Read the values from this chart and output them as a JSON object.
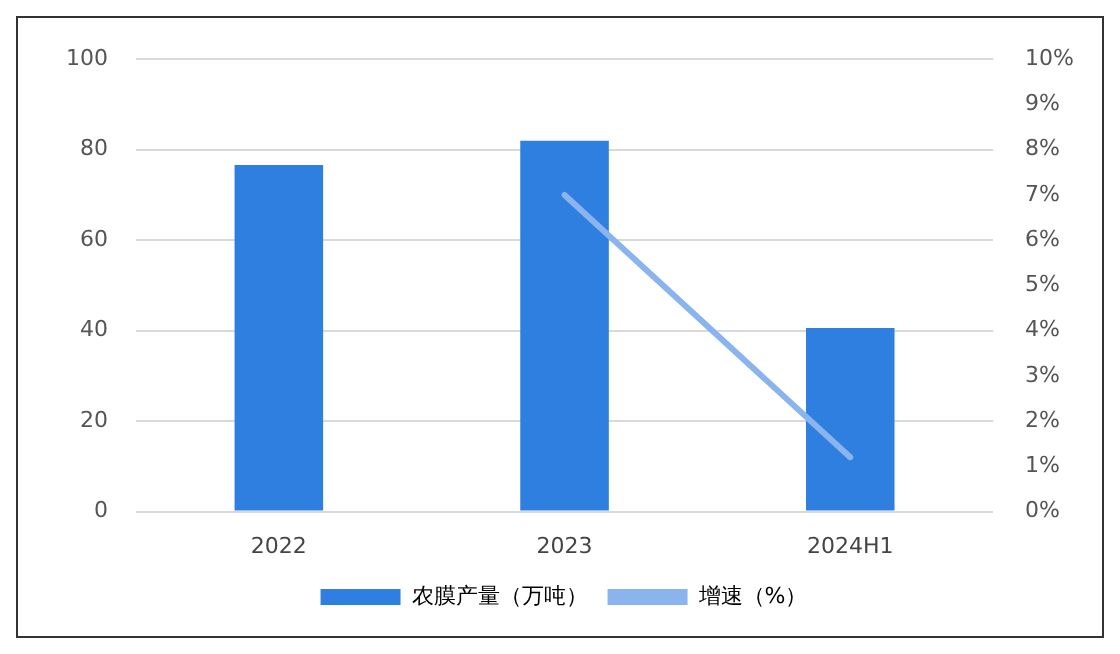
{
  "chart_data": {
    "type": "bar",
    "categories": [
      "2022",
      "2023",
      "2024H1"
    ],
    "series": [
      {
        "name": "农膜产量（万吨）",
        "color": "#2f7fe0",
        "values": [
          76.6,
          82.0,
          40.6
        ]
      },
      {
        "name": "增速（%）",
        "type": "line",
        "axis": "y2",
        "color": "#8ab4ee",
        "values": [
          null,
          7.0,
          1.2
        ]
      }
    ],
    "ylim": [
      0,
      100
    ],
    "yticks": [
      0,
      20,
      40,
      60,
      80,
      100
    ],
    "y2lim": [
      0,
      10
    ],
    "y2ticks": [
      {
        "value": 0,
        "label": "0%"
      },
      {
        "value": 1,
        "label": "1%"
      },
      {
        "value": 2,
        "label": "2%"
      },
      {
        "value": 3,
        "label": "3%"
      },
      {
        "value": 4,
        "label": "4%"
      },
      {
        "value": 5,
        "label": "5%"
      },
      {
        "value": 6,
        "label": "6%"
      },
      {
        "value": 7,
        "label": "7%"
      },
      {
        "value": 8,
        "label": "8%"
      },
      {
        "value": 9,
        "label": "9%"
      },
      {
        "value": 10,
        "label": "10%"
      }
    ],
    "grid": "y",
    "legend": "bottom",
    "marker": "none"
  }
}
